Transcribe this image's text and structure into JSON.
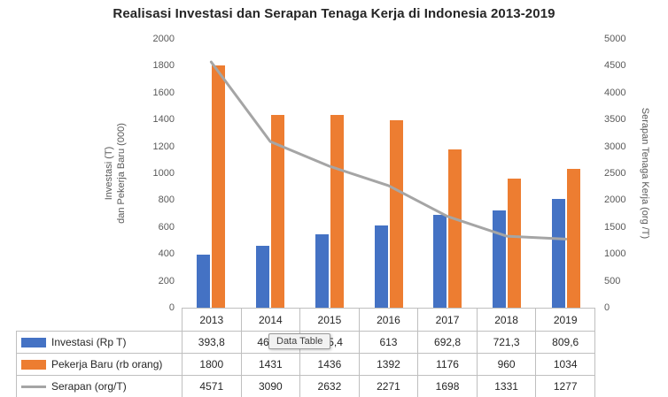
{
  "chart_data": {
    "type": "bar",
    "subtype": "combo-bar-line-dual-axis",
    "title": "Realisasi Investasi dan Serapan Tenaga Kerja di Indonesia 2013-2019",
    "categories": [
      "2013",
      "2014",
      "2015",
      "2016",
      "2017",
      "2018",
      "2019"
    ],
    "series": [
      {
        "name": "Investasi (Rp T)",
        "chart": "bar",
        "axis": "left",
        "color": "#4472C4",
        "values": [
          393.8,
          462.1,
          545.4,
          613,
          692.8,
          721.3,
          809.6
        ],
        "display": [
          "393,8",
          "462,1",
          "545,4",
          "613",
          "692,8",
          "721,3",
          "809,6"
        ]
      },
      {
        "name": "Pekerja Baru (rb orang)",
        "chart": "bar",
        "axis": "left",
        "color": "#ED7D31",
        "values": [
          1800,
          1431,
          1436,
          1392,
          1176,
          960,
          1034
        ],
        "display": [
          "1800",
          "1431",
          "1436",
          "1392",
          "1176",
          "960",
          "1034"
        ]
      },
      {
        "name": "Serapan (org/T)",
        "chart": "line",
        "axis": "right",
        "color": "#A5A5A5",
        "values": [
          4571,
          3090,
          2632,
          2271,
          1698,
          1331,
          1277
        ],
        "display": [
          "4571",
          "3090",
          "2632",
          "2271",
          "1698",
          "1331",
          "1277"
        ]
      }
    ],
    "left_axis": {
      "label_lines": [
        "Investasi  (T)",
        "dan Pekerja Baru (000)"
      ],
      "min": 0,
      "max": 2000,
      "step": 200,
      "ticks": [
        "0",
        "200",
        "400",
        "600",
        "800",
        "1000",
        "1200",
        "1400",
        "1600",
        "1800",
        "2000"
      ]
    },
    "right_axis": {
      "label_lines": [
        "Serapan Tenaga Kerja (org /T)"
      ],
      "min": 0,
      "max": 5000,
      "step": 500,
      "ticks": [
        "0",
        "500",
        "1000",
        "1500",
        "2000",
        "2500",
        "3000",
        "3500",
        "4000",
        "4500",
        "5000"
      ]
    },
    "legend_position": "data-table-left",
    "grid": false
  },
  "tooltip": {
    "text": "Data Table"
  }
}
